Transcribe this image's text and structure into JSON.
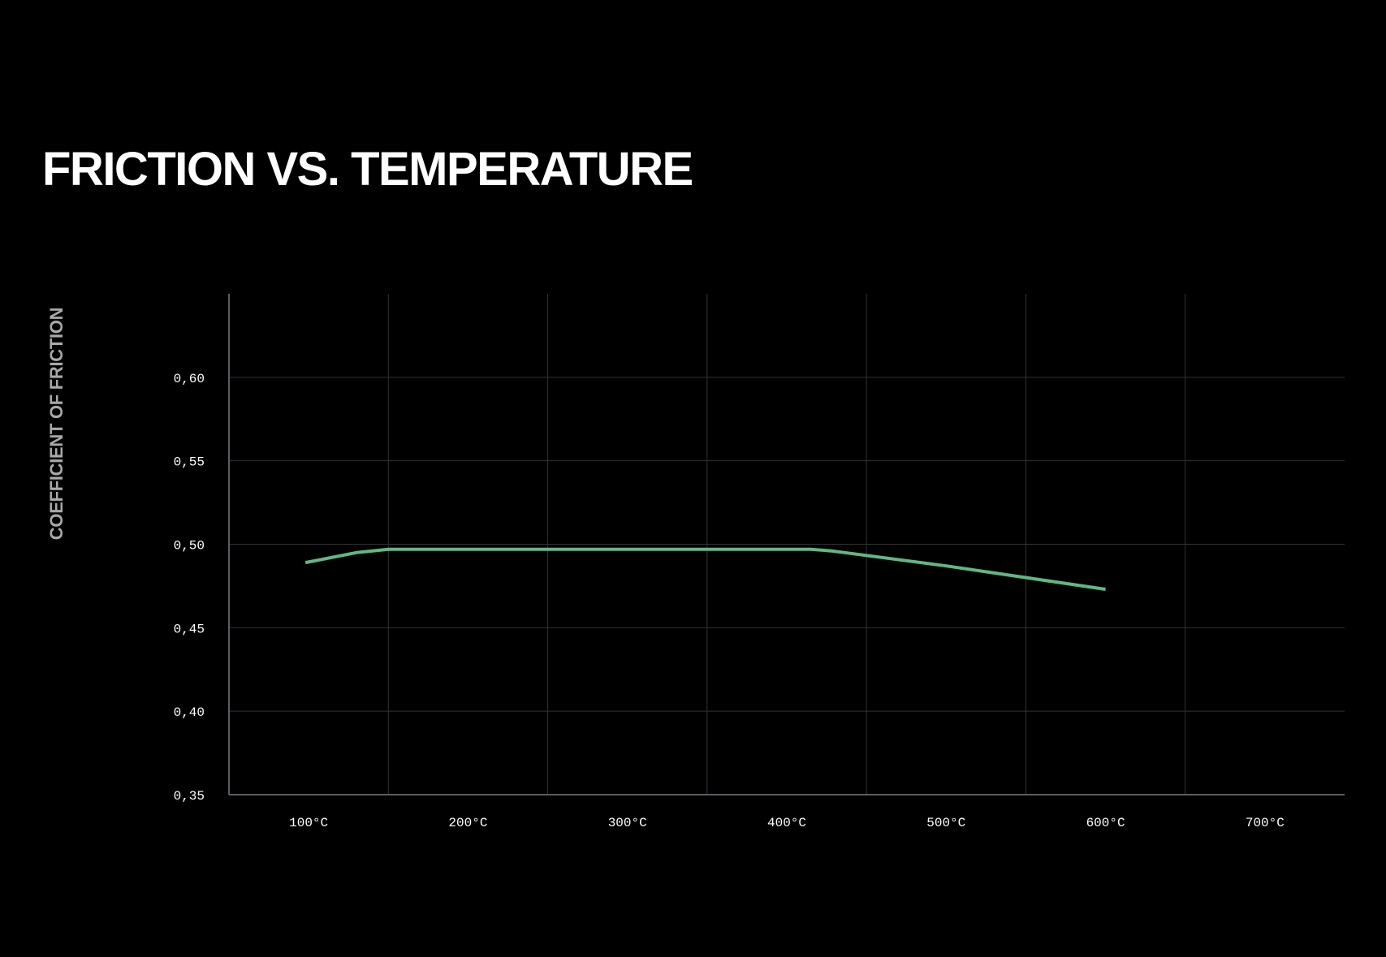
{
  "title": "FRICTION VS. TEMPERATURE",
  "colors": {
    "background": "#000000",
    "line": "#5fb883",
    "grid": "#2f3237",
    "axis": "#5a5d62",
    "ylabel": "#a9a9a9"
  },
  "chart_data": {
    "type": "line",
    "title": "FRICTION VS. TEMPERATURE",
    "xlabel": "",
    "ylabel": "COEFFICIENT OF FRICTION",
    "x_tick_labels": [
      "100°C",
      "200°C",
      "300°C",
      "400°C",
      "500°C",
      "600°C",
      "700°C"
    ],
    "x_tick_values": [
      100,
      200,
      300,
      400,
      500,
      600,
      700
    ],
    "y_tick_labels": [
      "0,35",
      "0,40",
      "0,45",
      "0,50",
      "0,55",
      "0,60"
    ],
    "y_tick_values": [
      0.35,
      0.4,
      0.45,
      0.5,
      0.55,
      0.6
    ],
    "xlim": [
      50,
      750
    ],
    "ylim": [
      0.35,
      0.65
    ],
    "grid": true,
    "legend": "none",
    "series": [
      {
        "x": [
          98,
          130,
          150,
          200,
          300,
          400,
          415,
          428,
          500,
          600
        ],
        "y": [
          0.489,
          0.495,
          0.497,
          0.497,
          0.497,
          0.497,
          0.497,
          0.496,
          0.487,
          0.473
        ]
      }
    ]
  }
}
